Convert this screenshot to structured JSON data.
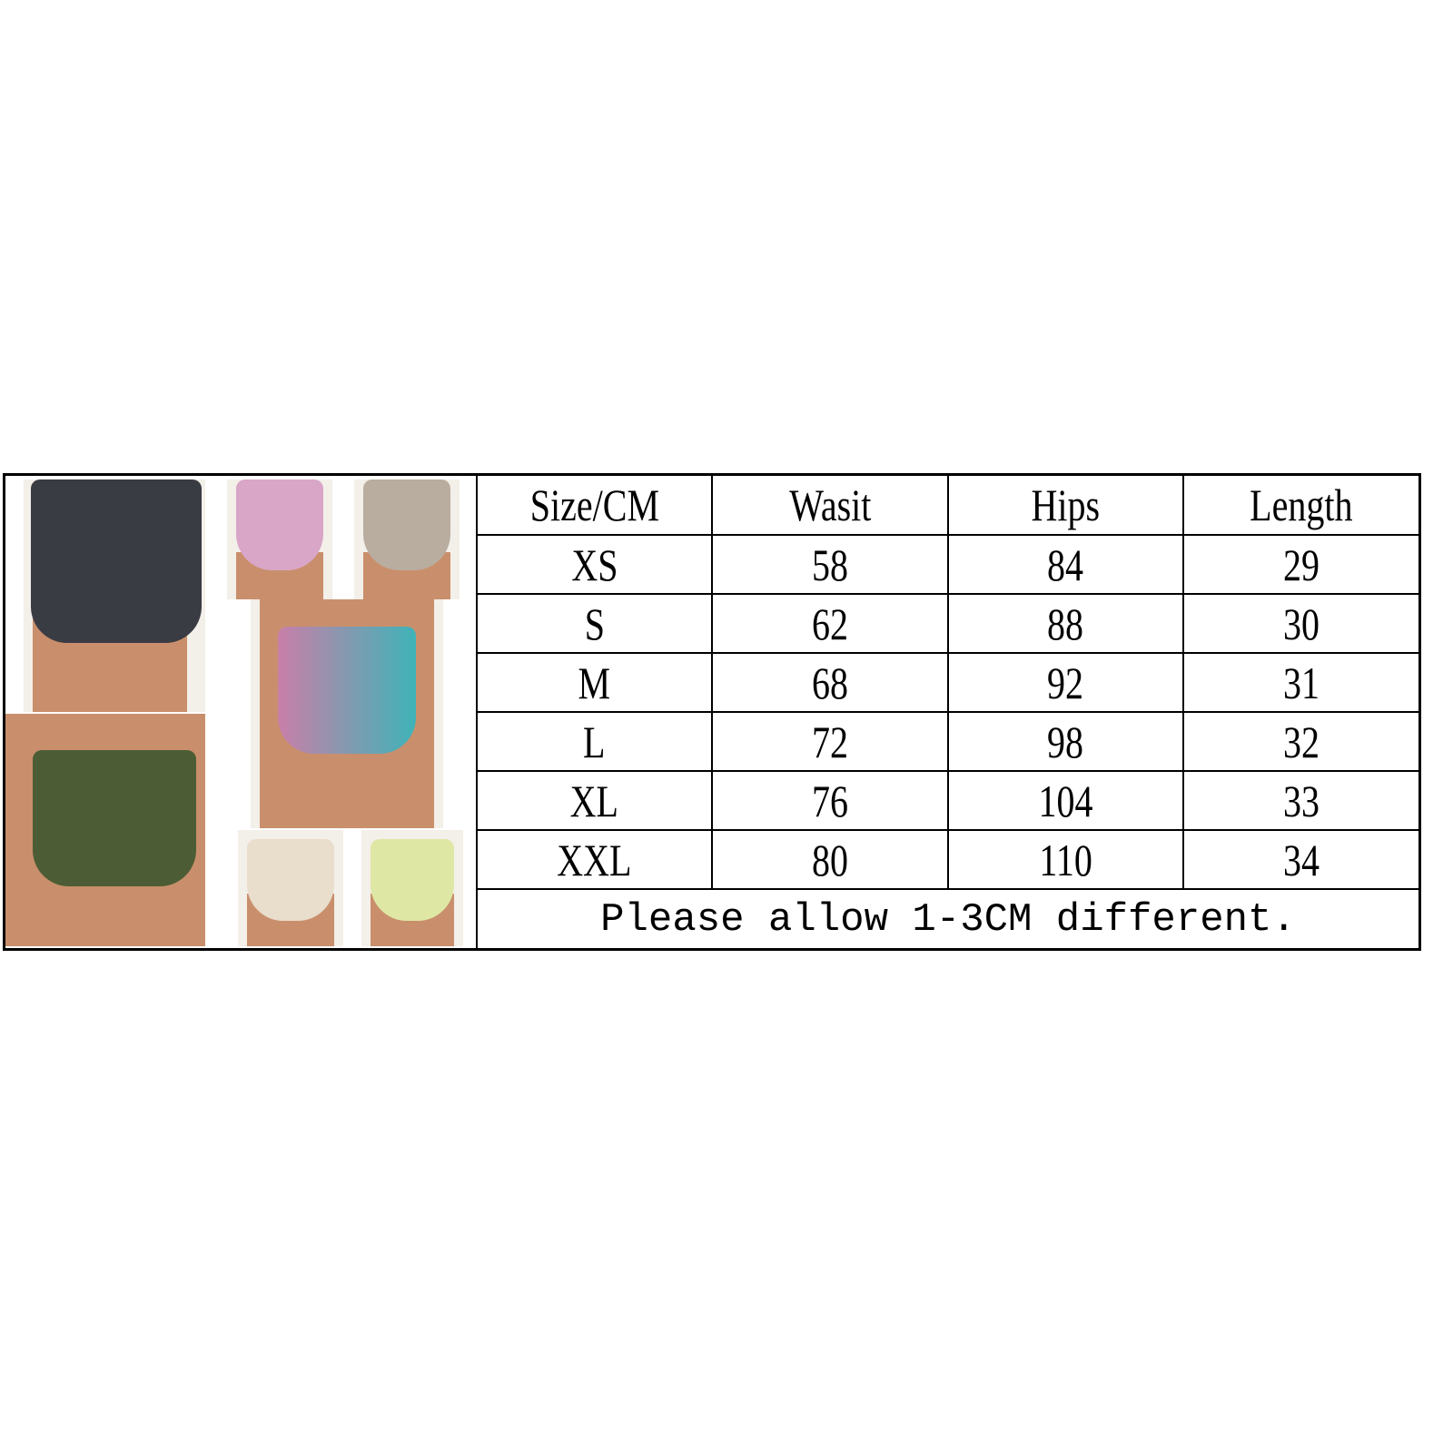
{
  "size_chart": {
    "headers": [
      "Size/CM",
      "Wasit",
      "Hips",
      "Length"
    ],
    "rows": [
      [
        "XS",
        "58",
        "84",
        "29"
      ],
      [
        "S",
        "62",
        "88",
        "30"
      ],
      [
        "M",
        "68",
        "92",
        "31"
      ],
      [
        "L",
        "72",
        "98",
        "32"
      ],
      [
        "XL",
        "76",
        "104",
        "33"
      ],
      [
        "XXL",
        "80",
        "110",
        "34"
      ]
    ],
    "note": "Please allow 1-3CM different."
  },
  "photos": [
    {
      "name": "floral-dark-shorts",
      "color": "#3a3c44"
    },
    {
      "name": "pink-tiedye-shorts",
      "color": "#d9a6c7"
    },
    {
      "name": "grey-tiedye-shorts",
      "color": "#b9ada0"
    },
    {
      "name": "leopard-shorts",
      "color": "#c97fa8"
    },
    {
      "name": "camo-shorts",
      "color": "#4c5d35"
    },
    {
      "name": "cream-floral-shorts",
      "color": "#e9ddcc"
    },
    {
      "name": "yellow-tiedye-shorts",
      "color": "#dfe7a4"
    }
  ]
}
